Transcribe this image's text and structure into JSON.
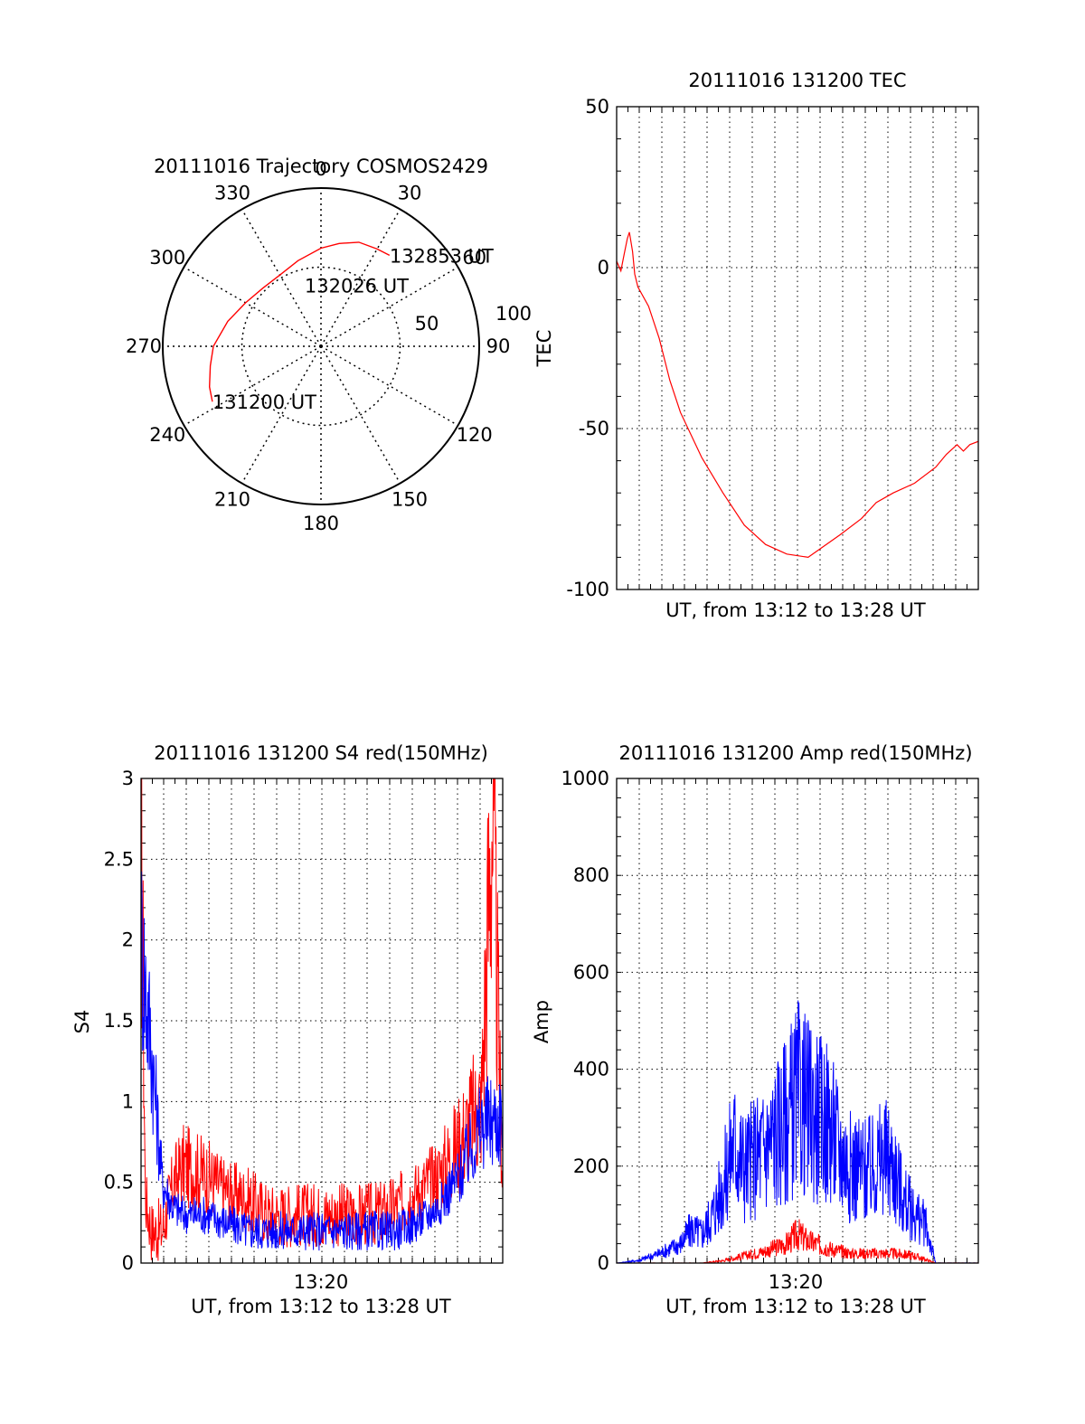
{
  "colors": {
    "red": "#ff0000",
    "blue": "#0000ff",
    "axis": "#000000",
    "grid": "#000000"
  },
  "chart_data": [
    {
      "id": "trajectory",
      "type": "polar",
      "title": "20111016 Trajectory COSMOS2429",
      "azimuth_labels": [
        "0",
        "30",
        "60",
        "90",
        "120",
        "150",
        "180",
        "210",
        "240",
        "270",
        "300",
        "330"
      ],
      "radius_labels": [
        "50",
        "100"
      ],
      "radius_max": 100,
      "series": [
        {
          "color": "red",
          "azimuth_deg": [
            243,
            250,
            260,
            270,
            285,
            300,
            315,
            330,
            345,
            0,
            10,
            20,
            30,
            37
          ],
          "radius": [
            77,
            75,
            71,
            68,
            61,
            55,
            52,
            52,
            56,
            62,
            66,
            70,
            71,
            72
          ]
        }
      ],
      "annotations": [
        {
          "text": "132853 UT",
          "azimuth_deg": 37,
          "radius": 72
        },
        {
          "text": "132026 UT",
          "azimuth_deg": 345,
          "radius": 40
        },
        {
          "text": "131200 UT",
          "azimuth_deg": 243,
          "radius": 77
        }
      ]
    },
    {
      "id": "tec",
      "type": "line",
      "title": "20111016 131200 TEC",
      "xlabel": "UT, from 13:12 to 13:28 UT",
      "ylabel": "TEC",
      "xlim": [
        0,
        17
      ],
      "ylim": [
        -100,
        50
      ],
      "yticks": [
        "50",
        "0",
        "-50",
        "-100"
      ],
      "series": [
        {
          "color": "red",
          "x": [
            0.0,
            0.2,
            0.35,
            0.5,
            0.6,
            0.75,
            0.85,
            1.0,
            1.5,
            2.0,
            2.5,
            3.0,
            4.0,
            5.0,
            6.0,
            7.0,
            8.0,
            9.0,
            10.5,
            11.5,
            12.2,
            13.0,
            14.0,
            15.0,
            15.5,
            16.0,
            16.3,
            16.6,
            17.0
          ],
          "y": [
            2,
            -1,
            4,
            9,
            11,
            5,
            -2,
            -6,
            -12,
            -22,
            -35,
            -45,
            -59,
            -70,
            -80,
            -86,
            -89,
            -90,
            -83,
            -78,
            -73,
            -70,
            -67,
            -62,
            -58,
            -55,
            -57,
            -55,
            -54
          ]
        }
      ]
    },
    {
      "id": "s4",
      "type": "line",
      "title": "20111016 131200 S4 red(150MHz)",
      "xlabel": "UT, from 13:12 to 13:28 UT",
      "ylabel": "S4",
      "xtick_label": "13:20",
      "xlim": [
        0,
        17
      ],
      "ylim": [
        0,
        3
      ],
      "yticks": [
        "0",
        "0.5",
        "1",
        "1.5",
        "2",
        "2.5",
        "3"
      ],
      "series": [
        {
          "color": "red",
          "x": [
            0,
            0.2,
            0.5,
            1,
            1.5,
            2,
            3,
            4,
            5,
            6,
            7,
            8,
            9,
            10,
            11,
            12,
            13,
            14,
            15,
            16,
            16.5,
            17
          ],
          "y": [
            3.0,
            0.4,
            0.2,
            0.2,
            0.5,
            0.6,
            0.55,
            0.45,
            0.4,
            0.3,
            0.3,
            0.3,
            0.3,
            0.3,
            0.3,
            0.35,
            0.45,
            0.55,
            0.75,
            1.0,
            2.8,
            0.5
          ]
        },
        {
          "color": "blue",
          "x": [
            0,
            0.5,
            1,
            1.5,
            2,
            3,
            4,
            5,
            6,
            7,
            8,
            9,
            10,
            11,
            12,
            13,
            14,
            15,
            16,
            17
          ],
          "y": [
            2.0,
            1.3,
            0.5,
            0.35,
            0.3,
            0.3,
            0.25,
            0.2,
            0.2,
            0.2,
            0.2,
            0.2,
            0.2,
            0.2,
            0.2,
            0.25,
            0.35,
            0.55,
            0.85,
            0.9
          ]
        }
      ]
    },
    {
      "id": "amp",
      "type": "line",
      "title": "20111016 131200 Amp red(150MHz)",
      "xlabel": "UT, from 13:12 to 13:28 UT",
      "ylabel": "Amp",
      "xtick_label": "13:20",
      "xlim": [
        0,
        17
      ],
      "ylim": [
        0,
        1000
      ],
      "yticks": [
        "0",
        "200",
        "400",
        "600",
        "800",
        "1000"
      ],
      "series": [
        {
          "color": "red",
          "x": [
            0,
            4,
            5,
            6,
            7,
            8,
            8.5,
            9,
            10,
            11,
            12,
            13,
            14,
            15,
            17
          ],
          "y": [
            0,
            0,
            5,
            15,
            25,
            40,
            60,
            45,
            30,
            20,
            20,
            20,
            15,
            0,
            0
          ]
        },
        {
          "color": "blue",
          "x": [
            0,
            1,
            2,
            3,
            3.5,
            4,
            4.5,
            5,
            5.5,
            6,
            7,
            7.5,
            8,
            8.5,
            9,
            9.5,
            10,
            10.5,
            11,
            12,
            12.5,
            13,
            13.5,
            14,
            14.5,
            15,
            17
          ],
          "y": [
            0,
            5,
            20,
            40,
            70,
            60,
            100,
            160,
            250,
            200,
            240,
            270,
            300,
            340,
            320,
            300,
            290,
            230,
            200,
            190,
            220,
            200,
            130,
            100,
            80,
            0,
            0
          ]
        }
      ]
    }
  ]
}
